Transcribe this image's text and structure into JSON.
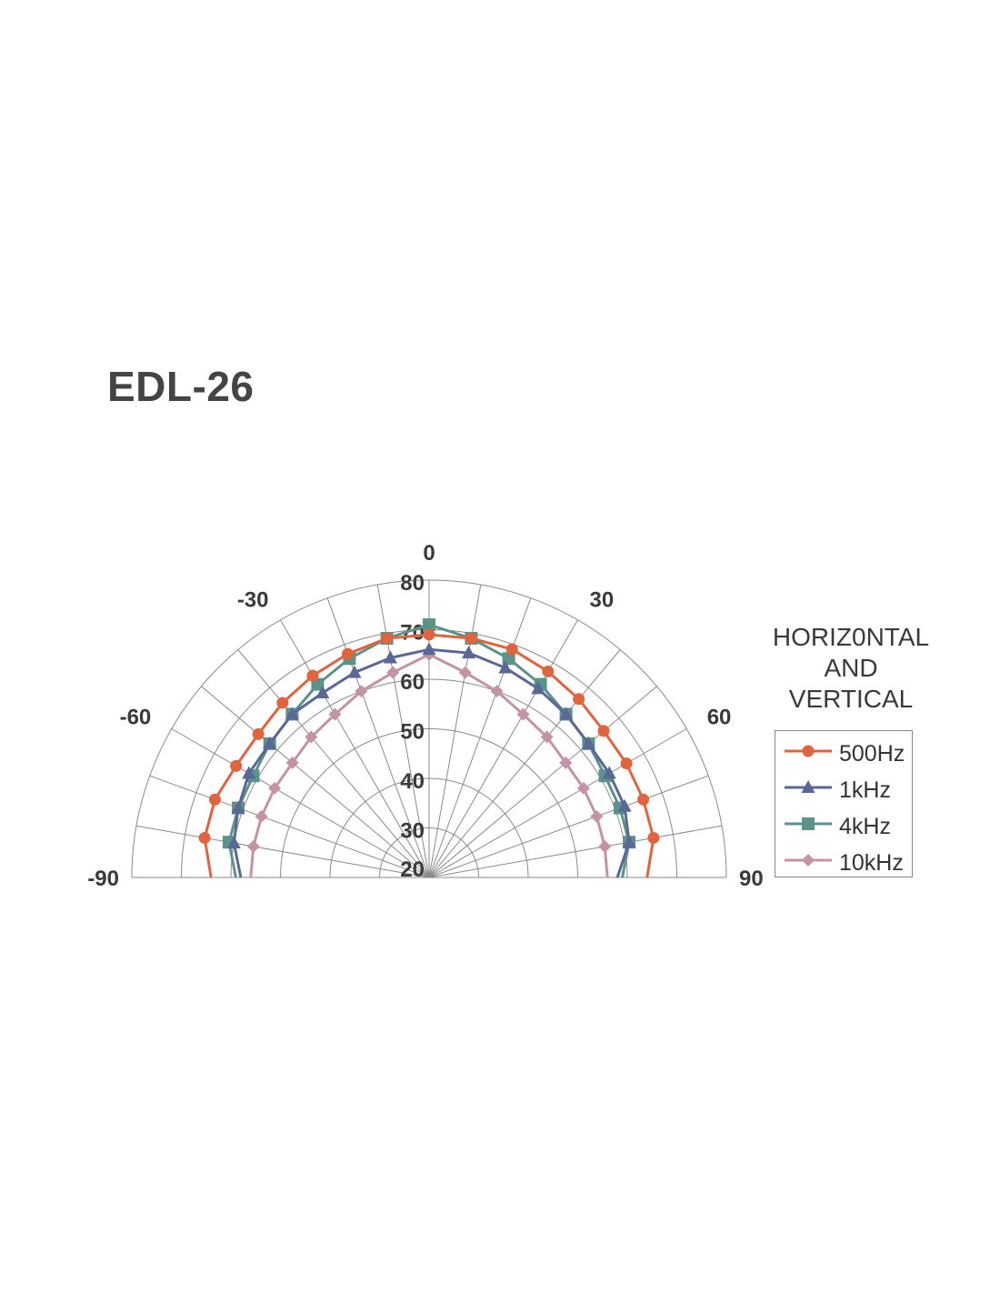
{
  "title": "EDL-26",
  "chart_data": {
    "type": "polar-line",
    "angle_unit": "degrees",
    "angle_range": [
      -90,
      90
    ],
    "angle_ticks": [
      -90,
      -60,
      -30,
      0,
      30,
      60,
      90
    ],
    "r_range": [
      20,
      80
    ],
    "r_ticks": [
      20,
      30,
      40,
      50,
      60,
      70,
      80
    ],
    "grid": true,
    "legend_caption": [
      "HORIZ0NTAL",
      "AND",
      "VERTICAL"
    ],
    "legend_position": "right",
    "series": [
      {
        "name": "500Hz",
        "color": "#e0653f",
        "marker": "circle",
        "angles": [
          -90,
          -80,
          -70,
          -60,
          -50,
          -40,
          -30,
          -20,
          -10,
          0,
          10,
          20,
          30,
          40,
          50,
          60,
          70,
          80,
          90
        ],
        "values": [
          64,
          66,
          66,
          65,
          65,
          66,
          67,
          68,
          69,
          69,
          69,
          69,
          68,
          67,
          66,
          66,
          66,
          66,
          64
        ]
      },
      {
        "name": "1kHz",
        "color": "#5a6797",
        "marker": "triangle",
        "angles": [
          -90,
          -80,
          -70,
          -60,
          -50,
          -40,
          -30,
          -20,
          -10,
          0,
          10,
          20,
          30,
          40,
          50,
          60,
          70,
          80,
          90
        ],
        "values": [
          58,
          60,
          61,
          62,
          62,
          63,
          63,
          64,
          65,
          66,
          66,
          65,
          64,
          63,
          62,
          62,
          62,
          61,
          58
        ]
      },
      {
        "name": "4kHz",
        "color": "#5a9387",
        "marker": "square",
        "angles": [
          -90,
          -80,
          -70,
          -60,
          -50,
          -40,
          -30,
          -20,
          -10,
          0,
          10,
          20,
          30,
          40,
          50,
          60,
          70,
          80,
          90
        ],
        "values": [
          59,
          61,
          61,
          61,
          62,
          63,
          65,
          67,
          69,
          71,
          69,
          67,
          65,
          63,
          62,
          61,
          61,
          61,
          59
        ]
      },
      {
        "name": "10kHz",
        "color": "#c493a6",
        "marker": "diamond",
        "angles": [
          -90,
          -80,
          -70,
          -60,
          -50,
          -40,
          -30,
          -20,
          -10,
          0,
          10,
          20,
          30,
          40,
          50,
          60,
          70,
          80,
          90
        ],
        "values": [
          56,
          56,
          56,
          56,
          56,
          57,
          58,
          60,
          62,
          65,
          62,
          60,
          58,
          57,
          56,
          56,
          56,
          56,
          56
        ]
      }
    ]
  }
}
